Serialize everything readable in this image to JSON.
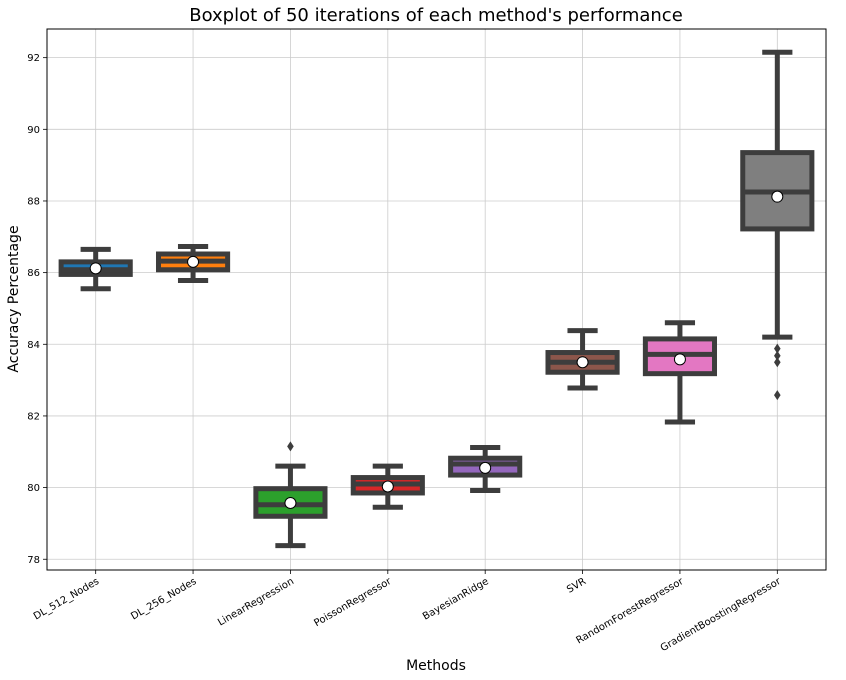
{
  "chart_data": {
    "type": "boxplot",
    "title": "Boxplot of 50 iterations of each method's performance",
    "xlabel": "Methods",
    "ylabel": "Accuracy Percentage",
    "ylim": [
      77.7,
      92.8
    ],
    "yticks": [
      "78",
      "80",
      "82",
      "84",
      "86",
      "88",
      "90",
      "92"
    ],
    "grid": true,
    "categories": [
      "DL_512_Nodes",
      "DL_256_Nodes",
      "LinearRegression",
      "PoissonRegressor",
      "BayesianRidge",
      "SVR",
      "RandomForestRegressor",
      "GradientBoostingRegressor"
    ],
    "series": [
      {
        "category": "DL_512_Nodes",
        "whisker_low": 85.55,
        "q1": 85.95,
        "median": 86.08,
        "q3": 86.3,
        "whisker_high": 86.65,
        "mean": 86.12,
        "outliers": [],
        "color": "#1f77b4"
      },
      {
        "category": "DL_256_Nodes",
        "whisker_low": 85.78,
        "q1": 86.08,
        "median": 86.32,
        "q3": 86.52,
        "whisker_high": 86.73,
        "mean": 86.3,
        "outliers": [],
        "color": "#ff7f0e"
      },
      {
        "category": "LinearRegression",
        "whisker_low": 78.38,
        "q1": 79.2,
        "median": 79.52,
        "q3": 79.97,
        "whisker_high": 80.6,
        "mean": 79.57,
        "outliers": [
          81.15
        ],
        "color": "#2ca02c"
      },
      {
        "category": "PoissonRegressor",
        "whisker_low": 79.45,
        "q1": 79.85,
        "median": 80.1,
        "q3": 80.28,
        "whisker_high": 80.6,
        "mean": 80.03,
        "outliers": [],
        "color": "#d62728"
      },
      {
        "category": "BayesianRidge",
        "whisker_low": 79.92,
        "q1": 80.35,
        "median": 80.66,
        "q3": 80.82,
        "whisker_high": 81.12,
        "mean": 80.55,
        "outliers": [],
        "color": "#9467bd"
      },
      {
        "category": "SVR",
        "whisker_low": 82.78,
        "q1": 83.22,
        "median": 83.5,
        "q3": 83.77,
        "whisker_high": 84.38,
        "mean": 83.5,
        "outliers": [],
        "color": "#8c564b"
      },
      {
        "category": "RandomForestRegressor",
        "whisker_low": 81.83,
        "q1": 83.18,
        "median": 83.72,
        "q3": 84.15,
        "whisker_high": 84.6,
        "mean": 83.58,
        "outliers": [],
        "color": "#e377c2"
      },
      {
        "category": "GradientBoostingRegressor",
        "whisker_low": 84.2,
        "q1": 87.22,
        "median": 88.25,
        "q3": 89.35,
        "whisker_high": 92.15,
        "mean": 88.12,
        "outliers": [
          83.88,
          83.68,
          83.5,
          82.58
        ],
        "color": "#7f7f7f"
      }
    ],
    "styling": {
      "line_color": "#3d3d3d",
      "mean_marker_fill": "#ffffff",
      "grid_color": "#cccccc"
    }
  }
}
